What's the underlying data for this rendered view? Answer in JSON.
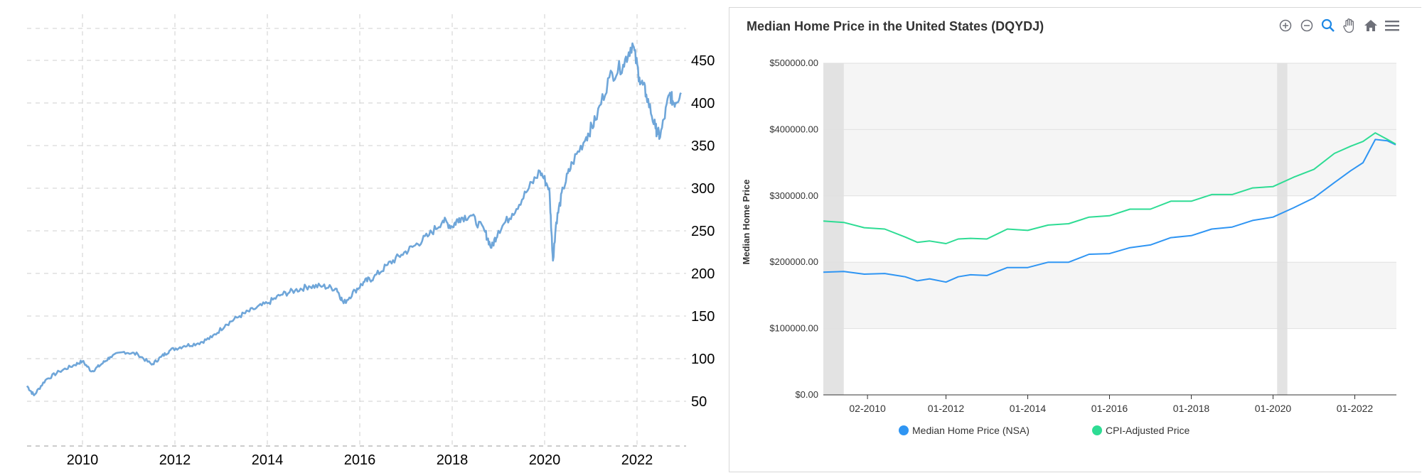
{
  "colors": {
    "left_line": "#6fa6d9",
    "nsa": "#2f95f3",
    "cpi": "#2edc94",
    "recession": "#e0e0e0",
    "band": "#f5f5f5"
  },
  "icons": [
    "zoom-in-icon",
    "zoom-out-icon",
    "magnifier-icon",
    "pan-hand-icon",
    "home-icon",
    "menu-icon"
  ],
  "chart_data": [
    {
      "type": "line",
      "title": "",
      "xlabel": "",
      "ylabel": "",
      "xlim": [
        2008.8,
        2023.0
      ],
      "ylim": [
        0,
        480
      ],
      "x_ticks": [
        "2010",
        "2012",
        "2014",
        "2016",
        "2018",
        "2020",
        "2022"
      ],
      "y_ticks": [
        "50",
        "100",
        "150",
        "200",
        "250",
        "300",
        "350",
        "400",
        "450"
      ],
      "grid": true,
      "series": [
        {
          "x": [
            2008.8,
            2008.95,
            2009.2,
            2009.5,
            2009.8,
            2010.0,
            2010.2,
            2010.4,
            2010.6,
            2010.9,
            2011.2,
            2011.5,
            2011.7,
            2011.9,
            2012.2,
            2012.5,
            2012.8,
            2013.1,
            2013.4,
            2013.7,
            2014.0,
            2014.3,
            2014.6,
            2014.9,
            2015.2,
            2015.5,
            2015.65,
            2015.9,
            2016.1,
            2016.3,
            2016.6,
            2016.9,
            2017.2,
            2017.5,
            2017.8,
            2018.0,
            2018.15,
            2018.4,
            2018.7,
            2018.85,
            2019.0,
            2019.3,
            2019.6,
            2019.9,
            2020.1,
            2020.18,
            2020.25,
            2020.4,
            2020.6,
            2020.9,
            2021.1,
            2021.4,
            2021.7,
            2021.9,
            2022.05,
            2022.2,
            2022.4,
            2022.5,
            2022.7,
            2022.8,
            2022.95
          ],
          "y": [
            68,
            57,
            75,
            85,
            92,
            97,
            85,
            93,
            102,
            108,
            105,
            93,
            102,
            110,
            115,
            118,
            125,
            140,
            150,
            158,
            165,
            175,
            180,
            185,
            185,
            182,
            165,
            180,
            190,
            195,
            210,
            222,
            233,
            245,
            262,
            255,
            265,
            268,
            250,
            230,
            250,
            270,
            295,
            320,
            300,
            215,
            260,
            300,
            330,
            360,
            380,
            430,
            445,
            470,
            430,
            410,
            370,
            360,
            410,
            400,
            412
          ]
        }
      ]
    },
    {
      "type": "line",
      "title": "Median Home Price in the United States (DQYDJ)",
      "xlabel": "",
      "ylabel": "Median Home Price",
      "ylim": [
        0,
        500000
      ],
      "x_ticks": [
        "02-2010",
        "01-2012",
        "01-2014",
        "01-2016",
        "01-2018",
        "01-2020",
        "01-2022"
      ],
      "y_ticks": [
        "$0.00",
        "$100000.00",
        "$200000.00",
        "$300000.00",
        "$400000.00",
        "$500000.00"
      ],
      "legend": "bottom",
      "recession_bands": [
        [
          2009.0,
          2009.5
        ],
        [
          2020.1,
          2020.35
        ]
      ],
      "series": [
        {
          "name": "Median Home Price (NSA)",
          "x": [
            2009.0,
            2009.5,
            2010.0,
            2010.5,
            2011.0,
            2011.3,
            2011.6,
            2012.0,
            2012.3,
            2012.6,
            2013.0,
            2013.5,
            2014.0,
            2014.5,
            2015.0,
            2015.5,
            2016.0,
            2016.5,
            2017.0,
            2017.5,
            2018.0,
            2018.5,
            2019.0,
            2019.5,
            2020.0,
            2020.5,
            2021.0,
            2021.5,
            2021.9,
            2022.2,
            2022.5,
            2022.8,
            2023.0
          ],
          "y": [
            185000,
            186000,
            182000,
            183000,
            178000,
            172000,
            175000,
            170000,
            178000,
            181000,
            180000,
            192000,
            192000,
            200000,
            200000,
            212000,
            213000,
            222000,
            226000,
            237000,
            240000,
            250000,
            253000,
            263000,
            268000,
            282000,
            297000,
            320000,
            338000,
            350000,
            385000,
            383000,
            377000
          ]
        },
        {
          "name": "CPI-Adjusted Price",
          "x": [
            2009.0,
            2009.5,
            2010.0,
            2010.5,
            2011.0,
            2011.3,
            2011.6,
            2012.0,
            2012.3,
            2012.6,
            2013.0,
            2013.5,
            2014.0,
            2014.5,
            2015.0,
            2015.5,
            2016.0,
            2016.5,
            2017.0,
            2017.5,
            2018.0,
            2018.5,
            2019.0,
            2019.5,
            2020.0,
            2020.5,
            2021.0,
            2021.5,
            2021.9,
            2022.2,
            2022.5,
            2022.8,
            2023.0
          ],
          "y": [
            262000,
            260000,
            252000,
            250000,
            238000,
            230000,
            232000,
            228000,
            235000,
            236000,
            235000,
            250000,
            248000,
            256000,
            258000,
            268000,
            270000,
            280000,
            280000,
            292000,
            292000,
            302000,
            302000,
            312000,
            314000,
            328000,
            340000,
            364000,
            375000,
            382000,
            395000,
            385000,
            378000
          ]
        }
      ]
    }
  ]
}
